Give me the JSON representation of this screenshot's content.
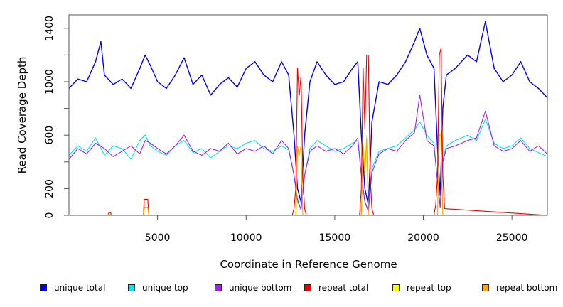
{
  "chart_data": {
    "type": "line",
    "title": "",
    "xlabel": "Coordinate in Reference Genome",
    "ylabel": "Read Coverage Depth",
    "xlim": [
      0,
      27000
    ],
    "ylim": [
      0,
      1500
    ],
    "x_ticks": [
      5000,
      10000,
      15000,
      20000,
      25000
    ],
    "y_ticks": [
      0,
      200,
      600,
      1000,
      1400
    ],
    "y_tick_labels": [
      "0",
      "200",
      "600",
      "1000",
      "1400"
    ],
    "x_tick_labels": [
      "5000",
      "10000",
      "15000",
      "20000",
      "25000"
    ],
    "legend_position": "bottom",
    "series": [
      {
        "name": "unique total",
        "color": "#0000ee",
        "x": [
          0,
          500,
          1000,
          1500,
          1800,
          2000,
          2500,
          3000,
          3500,
          4000,
          4300,
          4600,
          5000,
          5500,
          6000,
          6500,
          7000,
          7500,
          8000,
          8500,
          9000,
          9500,
          10000,
          10500,
          11000,
          11500,
          12000,
          12400,
          12700,
          12900,
          13100,
          13300,
          13600,
          14000,
          14500,
          15000,
          15500,
          16000,
          16300,
          16500,
          16700,
          16900,
          17100,
          17500,
          18000,
          18500,
          19000,
          19500,
          19800,
          20200,
          20600,
          20800,
          20950,
          21100,
          21300,
          21800,
          22500,
          23000,
          23500,
          24000,
          24500,
          25000,
          25500,
          26000,
          26500,
          27000
        ],
        "y": [
          950,
          1020,
          1000,
          1150,
          1300,
          1050,
          980,
          1020,
          950,
          1100,
          1200,
          1120,
          1000,
          950,
          1050,
          1180,
          980,
          1050,
          900,
          980,
          1030,
          960,
          1100,
          1150,
          1050,
          1000,
          1150,
          1050,
          600,
          200,
          100,
          600,
          1000,
          1150,
          1050,
          980,
          1000,
          1100,
          1150,
          600,
          200,
          80,
          700,
          1000,
          980,
          1050,
          1150,
          1300,
          1400,
          1200,
          1100,
          500,
          150,
          800,
          1050,
          1100,
          1200,
          1150,
          1450,
          1100,
          1000,
          1050,
          1150,
          1000,
          950,
          880
        ]
      },
      {
        "name": "unique top",
        "color": "#00e5ee",
        "x": [
          0,
          500,
          1000,
          1500,
          2000,
          2500,
          3000,
          3500,
          4000,
          4300,
          4600,
          5000,
          5500,
          6000,
          6500,
          7000,
          7500,
          8000,
          8500,
          9000,
          9500,
          10000,
          10500,
          11000,
          11500,
          12000,
          12400,
          12700,
          12900,
          13100,
          13300,
          13600,
          14000,
          14500,
          15000,
          15500,
          16000,
          16300,
          16500,
          16700,
          16900,
          17100,
          17500,
          18000,
          18500,
          19000,
          19500,
          19800,
          20200,
          20600,
          20800,
          20950,
          21100,
          21300,
          21800,
          22500,
          23000,
          23500,
          24000,
          24500,
          25000,
          25500,
          26000,
          26500,
          27000
        ],
        "y": [
          450,
          520,
          480,
          580,
          450,
          520,
          500,
          420,
          560,
          600,
          520,
          480,
          450,
          520,
          560,
          470,
          500,
          430,
          480,
          520,
          500,
          540,
          560,
          500,
          480,
          520,
          490,
          300,
          100,
          50,
          300,
          500,
          560,
          520,
          480,
          500,
          540,
          560,
          300,
          100,
          40,
          350,
          480,
          500,
          520,
          580,
          640,
          700,
          600,
          540,
          250,
          80,
          420,
          520,
          560,
          600,
          560,
          720,
          540,
          500,
          520,
          580,
          500,
          470,
          440
        ]
      },
      {
        "name": "unique bottom",
        "color": "#a020f0",
        "x": [
          0,
          500,
          1000,
          1500,
          2000,
          2500,
          3000,
          3500,
          4000,
          4300,
          4600,
          5000,
          5500,
          6000,
          6500,
          7000,
          7500,
          8000,
          8500,
          9000,
          9500,
          10000,
          10500,
          11000,
          11500,
          12000,
          12400,
          12700,
          12900,
          13100,
          13300,
          13600,
          14000,
          14500,
          15000,
          15500,
          16000,
          16300,
          16500,
          16700,
          16900,
          17100,
          17500,
          18000,
          18500,
          19000,
          19500,
          19800,
          20200,
          20600,
          20800,
          20950,
          21100,
          21300,
          21800,
          22500,
          23000,
          23500,
          24000,
          24500,
          25000,
          25500,
          26000,
          26500,
          27000
        ],
        "y": [
          420,
          500,
          460,
          540,
          500,
          440,
          480,
          520,
          460,
          560,
          540,
          500,
          460,
          520,
          600,
          480,
          450,
          500,
          480,
          540,
          460,
          500,
          480,
          520,
          460,
          560,
          500,
          300,
          120,
          40,
          300,
          480,
          520,
          480,
          500,
          460,
          520,
          580,
          300,
          100,
          30,
          320,
          460,
          500,
          480,
          560,
          620,
          900,
          560,
          520,
          250,
          60,
          400,
          500,
          520,
          560,
          580,
          780,
          520,
          480,
          500,
          560,
          480,
          520,
          460
        ]
      },
      {
        "name": "repeat total",
        "color": "#ee0000",
        "x": [
          0,
          2200,
          2250,
          2350,
          2400,
          4200,
          4250,
          4450,
          4500,
          12600,
          12700,
          12800,
          12900,
          13000,
          13100,
          13200,
          13300,
          13400,
          16400,
          16500,
          16600,
          16700,
          16800,
          16900,
          17000,
          17100,
          17200,
          20600,
          20700,
          20800,
          20900,
          21000,
          21100,
          21200,
          27000
        ],
        "y": [
          0,
          0,
          20,
          20,
          0,
          0,
          120,
          120,
          0,
          0,
          50,
          200,
          1100,
          900,
          1050,
          300,
          50,
          0,
          0,
          200,
          1100,
          650,
          1200,
          1200,
          300,
          50,
          0,
          0,
          80,
          300,
          1200,
          1250,
          300,
          50,
          0
        ]
      },
      {
        "name": "repeat top",
        "color": "#ffff00",
        "x": [
          0,
          12800,
          12900,
          13000,
          13100,
          13200,
          16500,
          16600,
          16700,
          16800,
          16900,
          20800,
          20900,
          21000,
          21100,
          27000
        ],
        "y": [
          0,
          0,
          500,
          450,
          520,
          0,
          0,
          550,
          350,
          600,
          0,
          0,
          600,
          620,
          0,
          0
        ]
      },
      {
        "name": "repeat bottom",
        "color": "#ffa500",
        "x": [
          0,
          2200,
          2250,
          2350,
          2400,
          4200,
          4250,
          4450,
          4500,
          12800,
          12900,
          13000,
          13100,
          13200,
          16500,
          16600,
          16700,
          16800,
          16900,
          20800,
          20900,
          21000,
          21100,
          27000
        ],
        "y": [
          0,
          0,
          10,
          10,
          0,
          0,
          60,
          60,
          0,
          0,
          520,
          450,
          520,
          0,
          0,
          520,
          300,
          580,
          0,
          0,
          600,
          600,
          0,
          0
        ]
      }
    ]
  }
}
